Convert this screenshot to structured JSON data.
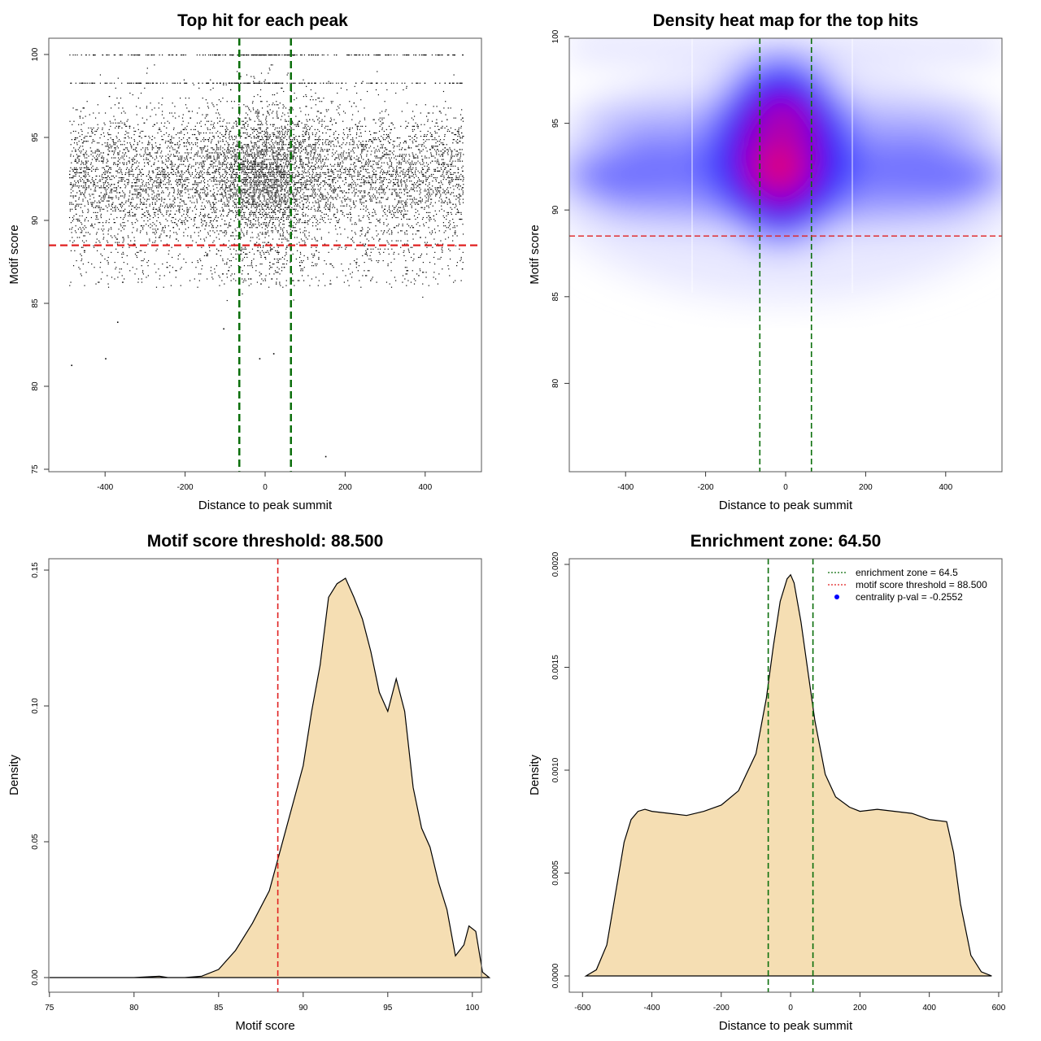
{
  "colors": {
    "points": "#000000",
    "threshold_line": "#e02020",
    "zone_line": "#0a6e0a",
    "density_fill": "#f5deb3",
    "density_stroke": "#000000",
    "heat_low": "#ffffff",
    "heat_mid": "#0000ff",
    "heat_high": "#ff0000",
    "legend_dot": "#0000ff"
  },
  "chart_data": [
    {
      "id": "scatter",
      "type": "scatter",
      "title": "Top hit for each peak",
      "xlabel": "Distance to peak summit",
      "ylabel": "Motif score",
      "xlim": [
        -500,
        500
      ],
      "ylim": [
        75,
        100
      ],
      "xticks": [
        "-400",
        "-200",
        "0",
        "200",
        "400"
      ],
      "yticks": [
        "75",
        "80",
        "85",
        "90",
        "95",
        "100"
      ],
      "zone_lines_x": [
        -64.5,
        64.5
      ],
      "threshold_line_y": 88.5,
      "approx_n_points": 9000,
      "x_range": [
        -490,
        495
      ],
      "outlier_points": [
        {
          "x": -485,
          "y": 81.3
        },
        {
          "x": -400,
          "y": 81.7
        },
        {
          "x": -370,
          "y": 83.9
        },
        {
          "x": -105,
          "y": 83.5
        },
        {
          "x": -15,
          "y": 81.7
        },
        {
          "x": 20,
          "y": 82.0
        },
        {
          "x": 150,
          "y": 75.8
        }
      ],
      "score_distribution_note": "dense band 88.5-98.5 concentrated near x=0; sparse below 88.5; discrete levels near 98.3 and 100"
    },
    {
      "id": "heatmap",
      "type": "heatmap",
      "title": "Density heat map for the top hits",
      "xlabel": "Distance to peak summit",
      "ylabel": "Motif score",
      "xlim": [
        -500,
        500
      ],
      "ylim": [
        75,
        100
      ],
      "xticks": [
        "-400",
        "-200",
        "0",
        "200",
        "400"
      ],
      "yticks": [
        "80",
        "85",
        "90",
        "95",
        "100"
      ],
      "zone_lines_x": [
        -64.5,
        64.5
      ],
      "threshold_line_y": 88.5,
      "hotspots": [
        {
          "x": -5,
          "y": 92.8,
          "intensity": "high"
        },
        {
          "x": 0,
          "y": 95.6,
          "intensity": "high"
        }
      ]
    },
    {
      "id": "score-density",
      "type": "area",
      "title": "Motif score threshold: 88.500",
      "xlabel": "Motif score",
      "ylabel": "Density",
      "xlim": [
        74,
        101.5
      ],
      "ylim": [
        0,
        0.15
      ],
      "xticks": [
        "75",
        "80",
        "85",
        "90",
        "95",
        "100"
      ],
      "yticks": [
        "0.00",
        "0.05",
        "0.10",
        "0.15"
      ],
      "threshold_line_x": 88.5,
      "x": [
        75,
        78,
        80,
        81.5,
        82,
        83,
        84,
        85,
        86,
        87,
        88,
        89,
        90,
        90.5,
        91,
        91.5,
        92,
        92.5,
        93,
        93.5,
        94,
        94.5,
        95,
        95.5,
        96,
        96.5,
        97,
        97.5,
        98,
        98.5,
        99,
        99.5,
        99.8,
        100.2,
        100.6,
        101
      ],
      "y": [
        0,
        0,
        0,
        0.0005,
        0,
        0,
        0.0005,
        0.003,
        0.01,
        0.02,
        0.032,
        0.055,
        0.078,
        0.098,
        0.115,
        0.14,
        0.145,
        0.147,
        0.14,
        0.132,
        0.12,
        0.105,
        0.098,
        0.11,
        0.098,
        0.07,
        0.055,
        0.048,
        0.035,
        0.025,
        0.008,
        0.012,
        0.019,
        0.017,
        0.002,
        0
      ]
    },
    {
      "id": "distance-density",
      "type": "area",
      "title": "Enrichment zone: 64.50",
      "xlabel": "Distance to peak summit",
      "ylabel": "Density",
      "xlim": [
        -610,
        640
      ],
      "ylim": [
        0,
        0.002
      ],
      "xticks": [
        "-600",
        "-400",
        "-200",
        "0",
        "200",
        "400",
        "600"
      ],
      "yticks": [
        "0.0000",
        "0.0005",
        "0.0010",
        "0.0015",
        "0.0020"
      ],
      "zone_lines_x": [
        -64.5,
        64.5
      ],
      "x": [
        -590,
        -560,
        -530,
        -500,
        -480,
        -460,
        -440,
        -420,
        -400,
        -350,
        -300,
        -250,
        -200,
        -150,
        -100,
        -70,
        -50,
        -30,
        -10,
        0,
        10,
        30,
        50,
        70,
        100,
        130,
        170,
        200,
        250,
        300,
        350,
        400,
        450,
        470,
        490,
        520,
        550,
        580
      ],
      "y": [
        0,
        3e-05,
        0.00015,
        0.00045,
        0.00065,
        0.00076,
        0.0008,
        0.00081,
        0.0008,
        0.00079,
        0.00078,
        0.0008,
        0.00083,
        0.0009,
        0.00108,
        0.00135,
        0.0016,
        0.00182,
        0.00193,
        0.00195,
        0.00191,
        0.00172,
        0.00148,
        0.00124,
        0.00098,
        0.00087,
        0.00082,
        0.0008,
        0.00081,
        0.0008,
        0.00079,
        0.00076,
        0.00075,
        0.0006,
        0.00035,
        0.0001,
        2e-05,
        0
      ]
    }
  ],
  "legend": {
    "items": [
      {
        "label": "enrichment zone = 64.5",
        "kind": "line",
        "color": "#0a6e0a"
      },
      {
        "label": "motif score threshold = 88.500",
        "kind": "line",
        "color": "#e02020"
      },
      {
        "label": "centrality p-val = -0.2552",
        "kind": "dot",
        "color": "#0000ff"
      }
    ]
  }
}
